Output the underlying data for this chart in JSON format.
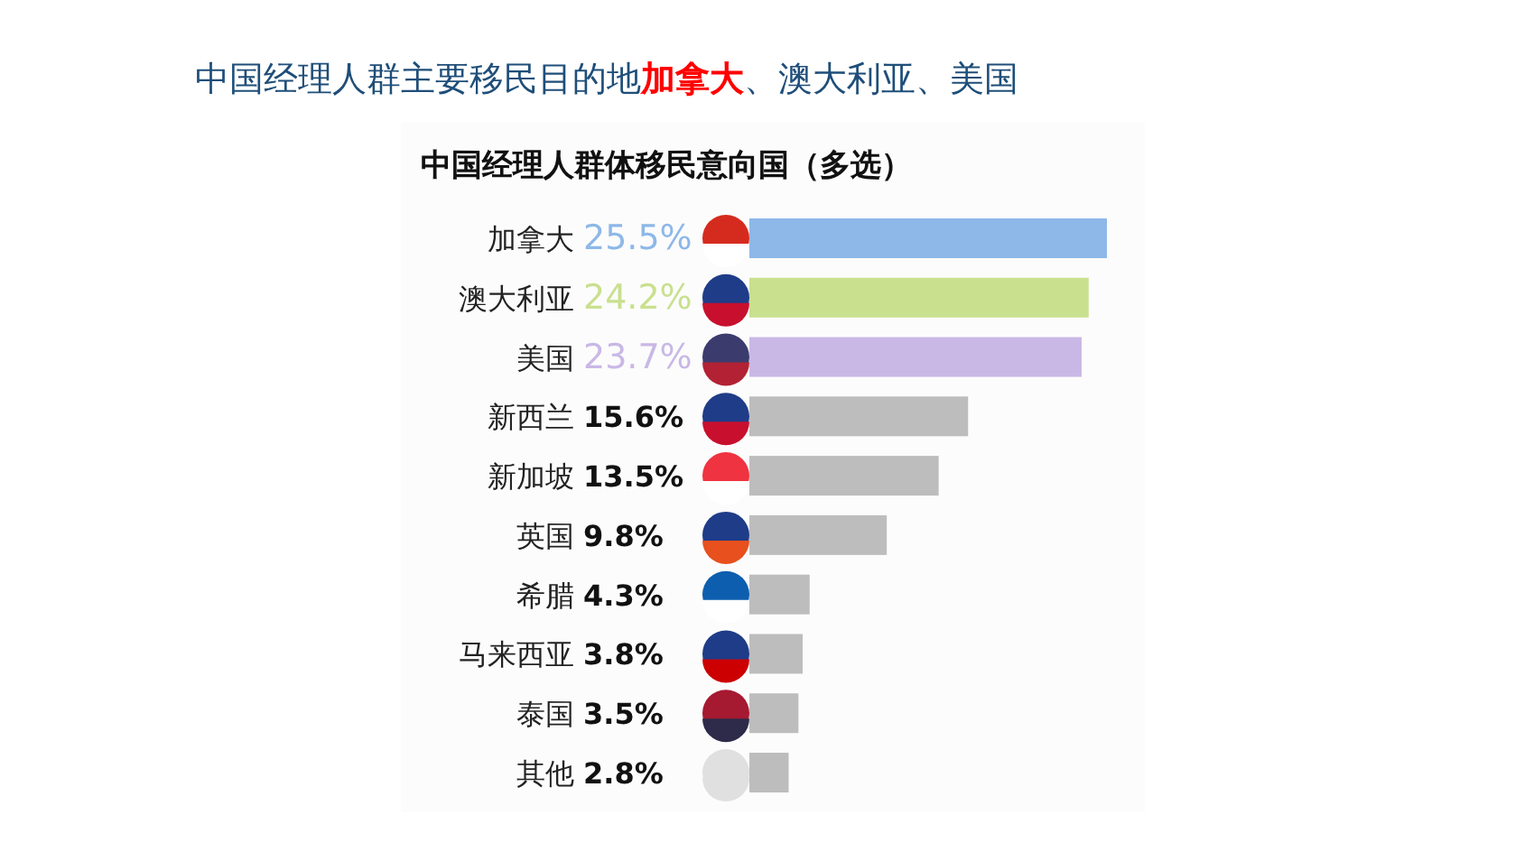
{
  "chart_data": {
    "type": "bar",
    "orientation": "horizontal",
    "title": "中国经理人群主要移民目的地**加拿大**、澳大利亚、美国",
    "subtitle": "中国经理人群体移民意向国（多选）",
    "categories": [
      "加拿大",
      "澳大利亚",
      "美国",
      "新西兰",
      "新加坡",
      "英国",
      "希腊",
      "马来西亚",
      "泰国",
      "其他"
    ],
    "values": [
      25.5,
      24.2,
      23.7,
      15.6,
      13.5,
      9.8,
      4.3,
      3.8,
      3.5,
      2.8
    ],
    "value_labels": [
      "25.5%",
      "24.2%",
      "23.7%",
      "15.6%",
      "13.5%",
      "9.8%",
      "4.3%",
      "3.8%",
      "3.5%",
      "2.8%"
    ],
    "colors": [
      "#8db8e8",
      "#c9e08f",
      "#c9b8e6",
      "#bdbdbd",
      "#bdbdbd",
      "#bdbdbd",
      "#bdbdbd",
      "#bdbdbd",
      "#bdbdbd",
      "#bdbdbd"
    ]
  }
}
